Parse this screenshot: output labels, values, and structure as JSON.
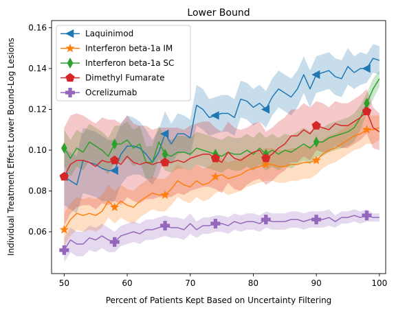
{
  "chart_data": {
    "type": "line",
    "title": "Lower Bound",
    "xlabel": "Percent of Patients Kept Based on Uncertainty Filtering",
    "ylabel": "Individual Treatment Effect Lower Bound-Log Lesions",
    "xlim": [
      48,
      101
    ],
    "ylim": [
      0.0395,
      0.1635
    ],
    "xticks": [
      50,
      60,
      70,
      80,
      90,
      100
    ],
    "xtick_labels": [
      "50",
      "60",
      "70",
      "80",
      "90",
      "100"
    ],
    "yticks": [
      0.06,
      0.08,
      0.1,
      0.12,
      0.14,
      0.16
    ],
    "ytick_labels": [
      "0.06",
      "0.08",
      "0.10",
      "0.12",
      "0.14",
      "0.16"
    ],
    "grid": false,
    "legend_position": "top-left",
    "x": [
      50,
      51,
      52,
      53,
      54,
      55,
      56,
      57,
      58,
      59,
      60,
      61,
      62,
      63,
      64,
      65,
      66,
      67,
      68,
      69,
      70,
      71,
      72,
      73,
      74,
      75,
      76,
      77,
      78,
      79,
      80,
      81,
      82,
      83,
      84,
      85,
      86,
      87,
      88,
      89,
      90,
      91,
      92,
      93,
      94,
      95,
      96,
      97,
      98,
      99,
      100
    ],
    "series": [
      {
        "name": "Laquinimod",
        "color": "#1f77b4",
        "marker": "triangle-left",
        "marker_x": [
          50,
          58,
          66,
          74,
          82,
          90,
          98
        ],
        "values": [
          0.087,
          0.085,
          0.083,
          0.095,
          0.094,
          0.093,
          0.091,
          0.09,
          0.09,
          0.098,
          0.102,
          0.102,
          0.101,
          0.098,
          0.094,
          0.099,
          0.108,
          0.103,
          0.108,
          0.108,
          0.106,
          0.122,
          0.12,
          0.116,
          0.117,
          0.118,
          0.118,
          0.116,
          0.125,
          0.124,
          0.121,
          0.123,
          0.12,
          0.126,
          0.13,
          0.128,
          0.126,
          0.13,
          0.137,
          0.13,
          0.137,
          0.138,
          0.139,
          0.136,
          0.135,
          0.141,
          0.138,
          0.14,
          0.14,
          0.145,
          0.144
        ],
        "band_low": [
          0.073,
          0.071,
          0.069,
          0.079,
          0.078,
          0.077,
          0.075,
          0.075,
          0.075,
          0.083,
          0.087,
          0.088,
          0.088,
          0.086,
          0.083,
          0.088,
          0.097,
          0.093,
          0.098,
          0.099,
          0.097,
          0.112,
          0.11,
          0.107,
          0.108,
          0.109,
          0.109,
          0.107,
          0.116,
          0.115,
          0.112,
          0.114,
          0.111,
          0.117,
          0.121,
          0.119,
          0.117,
          0.121,
          0.128,
          0.121,
          0.128,
          0.129,
          0.13,
          0.127,
          0.126,
          0.132,
          0.13,
          0.132,
          0.133,
          0.138,
          0.137
        ],
        "band_high": [
          0.101,
          0.099,
          0.097,
          0.111,
          0.11,
          0.109,
          0.107,
          0.105,
          0.105,
          0.113,
          0.117,
          0.116,
          0.114,
          0.11,
          0.105,
          0.11,
          0.119,
          0.113,
          0.118,
          0.117,
          0.115,
          0.132,
          0.13,
          0.125,
          0.126,
          0.127,
          0.127,
          0.125,
          0.134,
          0.133,
          0.13,
          0.132,
          0.129,
          0.135,
          0.139,
          0.137,
          0.135,
          0.139,
          0.146,
          0.139,
          0.146,
          0.147,
          0.148,
          0.145,
          0.144,
          0.15,
          0.146,
          0.148,
          0.147,
          0.152,
          0.151
        ]
      },
      {
        "name": "Interferon beta-1a IM",
        "color": "#ff7f0e",
        "marker": "star",
        "marker_x": [
          50,
          58,
          66,
          74,
          82,
          90,
          98
        ],
        "values": [
          0.061,
          0.066,
          0.069,
          0.068,
          0.069,
          0.068,
          0.07,
          0.075,
          0.072,
          0.075,
          0.073,
          0.072,
          0.075,
          0.077,
          0.079,
          0.078,
          0.078,
          0.081,
          0.085,
          0.083,
          0.082,
          0.085,
          0.083,
          0.084,
          0.087,
          0.088,
          0.086,
          0.087,
          0.088,
          0.09,
          0.091,
          0.092,
          0.093,
          0.093,
          0.092,
          0.092,
          0.093,
          0.093,
          0.094,
          0.094,
          0.095,
          0.098,
          0.1,
          0.101,
          0.103,
          0.105,
          0.107,
          0.108,
          0.11,
          0.11,
          0.111
        ],
        "band_low": [
          0.053,
          0.058,
          0.061,
          0.06,
          0.061,
          0.06,
          0.062,
          0.067,
          0.064,
          0.067,
          0.065,
          0.064,
          0.067,
          0.069,
          0.071,
          0.07,
          0.07,
          0.073,
          0.077,
          0.075,
          0.074,
          0.077,
          0.075,
          0.076,
          0.079,
          0.08,
          0.078,
          0.079,
          0.08,
          0.082,
          0.083,
          0.084,
          0.085,
          0.085,
          0.084,
          0.084,
          0.085,
          0.085,
          0.086,
          0.086,
          0.088,
          0.091,
          0.093,
          0.094,
          0.096,
          0.098,
          0.1,
          0.101,
          0.103,
          0.103,
          0.105
        ],
        "band_high": [
          0.069,
          0.074,
          0.077,
          0.076,
          0.077,
          0.076,
          0.078,
          0.083,
          0.08,
          0.083,
          0.081,
          0.08,
          0.083,
          0.085,
          0.087,
          0.086,
          0.086,
          0.089,
          0.093,
          0.091,
          0.09,
          0.093,
          0.091,
          0.092,
          0.095,
          0.096,
          0.094,
          0.095,
          0.096,
          0.098,
          0.099,
          0.1,
          0.101,
          0.101,
          0.1,
          0.1,
          0.101,
          0.101,
          0.102,
          0.102,
          0.102,
          0.105,
          0.107,
          0.108,
          0.11,
          0.112,
          0.114,
          0.115,
          0.117,
          0.117,
          0.117
        ]
      },
      {
        "name": "Interferon beta-1a SC",
        "color": "#2ca02c",
        "marker": "thin-diamond",
        "marker_x": [
          50,
          58,
          66,
          74,
          82,
          90,
          98
        ],
        "values": [
          0.101,
          0.096,
          0.101,
          0.099,
          0.104,
          0.102,
          0.1,
          0.097,
          0.103,
          0.103,
          0.105,
          0.101,
          0.103,
          0.094,
          0.094,
          0.104,
          0.098,
          0.097,
          0.099,
          0.099,
          0.098,
          0.101,
          0.1,
          0.099,
          0.098,
          0.097,
          0.099,
          0.098,
          0.098,
          0.1,
          0.098,
          0.101,
          0.098,
          0.1,
          0.098,
          0.1,
          0.099,
          0.101,
          0.103,
          0.101,
          0.104,
          0.104,
          0.106,
          0.107,
          0.108,
          0.109,
          0.111,
          0.116,
          0.123,
          0.13,
          0.135
        ],
        "band_low": [
          0.092,
          0.087,
          0.092,
          0.09,
          0.095,
          0.093,
          0.091,
          0.088,
          0.094,
          0.094,
          0.096,
          0.092,
          0.094,
          0.086,
          0.086,
          0.096,
          0.09,
          0.089,
          0.091,
          0.091,
          0.09,
          0.093,
          0.092,
          0.091,
          0.09,
          0.089,
          0.091,
          0.09,
          0.09,
          0.092,
          0.09,
          0.093,
          0.09,
          0.092,
          0.09,
          0.092,
          0.091,
          0.093,
          0.095,
          0.093,
          0.097,
          0.097,
          0.099,
          0.1,
          0.101,
          0.102,
          0.104,
          0.11,
          0.118,
          0.125,
          0.131
        ],
        "band_high": [
          0.11,
          0.105,
          0.11,
          0.108,
          0.113,
          0.111,
          0.109,
          0.106,
          0.112,
          0.112,
          0.114,
          0.11,
          0.112,
          0.102,
          0.102,
          0.112,
          0.106,
          0.105,
          0.107,
          0.107,
          0.106,
          0.109,
          0.108,
          0.107,
          0.106,
          0.105,
          0.107,
          0.106,
          0.106,
          0.108,
          0.106,
          0.109,
          0.106,
          0.108,
          0.106,
          0.108,
          0.107,
          0.109,
          0.111,
          0.109,
          0.111,
          0.111,
          0.113,
          0.114,
          0.115,
          0.116,
          0.118,
          0.122,
          0.128,
          0.135,
          0.139
        ]
      },
      {
        "name": "Dimethyl Fumarate",
        "color": "#d62728",
        "marker": "pentagon",
        "marker_x": [
          50,
          58,
          66,
          74,
          82,
          90,
          98
        ],
        "values": [
          0.087,
          0.093,
          0.095,
          0.095,
          0.094,
          0.092,
          0.095,
          0.094,
          0.095,
          0.093,
          0.097,
          0.094,
          0.093,
          0.094,
          0.093,
          0.094,
          0.094,
          0.094,
          0.095,
          0.094,
          0.096,
          0.097,
          0.098,
          0.098,
          0.096,
          0.094,
          0.099,
          0.096,
          0.095,
          0.097,
          0.099,
          0.1,
          0.096,
          0.098,
          0.101,
          0.103,
          0.107,
          0.107,
          0.11,
          0.108,
          0.112,
          0.111,
          0.11,
          0.113,
          0.112,
          0.112,
          0.114,
          0.116,
          0.119,
          0.111,
          0.109
        ],
        "band_low": [
          0.063,
          0.069,
          0.072,
          0.073,
          0.073,
          0.071,
          0.074,
          0.073,
          0.075,
          0.073,
          0.077,
          0.075,
          0.074,
          0.076,
          0.076,
          0.077,
          0.077,
          0.077,
          0.079,
          0.078,
          0.08,
          0.081,
          0.082,
          0.082,
          0.081,
          0.079,
          0.084,
          0.081,
          0.08,
          0.083,
          0.085,
          0.086,
          0.083,
          0.085,
          0.088,
          0.09,
          0.094,
          0.094,
          0.097,
          0.095,
          0.1,
          0.099,
          0.099,
          0.102,
          0.101,
          0.101,
          0.103,
          0.105,
          0.108,
          0.101,
          0.1
        ],
        "band_high": [
          0.111,
          0.117,
          0.118,
          0.117,
          0.115,
          0.113,
          0.116,
          0.115,
          0.115,
          0.113,
          0.117,
          0.113,
          0.112,
          0.112,
          0.11,
          0.111,
          0.111,
          0.111,
          0.111,
          0.11,
          0.112,
          0.113,
          0.114,
          0.114,
          0.111,
          0.109,
          0.114,
          0.111,
          0.11,
          0.111,
          0.113,
          0.114,
          0.109,
          0.111,
          0.114,
          0.116,
          0.12,
          0.12,
          0.123,
          0.121,
          0.124,
          0.123,
          0.121,
          0.124,
          0.123,
          0.123,
          0.125,
          0.127,
          0.13,
          0.121,
          0.118
        ]
      },
      {
        "name": "Ocrelizumab",
        "color": "#9467bd",
        "marker": "plus-filled",
        "marker_x": [
          50,
          58,
          66,
          74,
          82,
          90,
          98
        ],
        "values": [
          0.051,
          0.056,
          0.054,
          0.054,
          0.057,
          0.056,
          0.058,
          0.056,
          0.055,
          0.058,
          0.059,
          0.06,
          0.059,
          0.061,
          0.061,
          0.062,
          0.063,
          0.062,
          0.062,
          0.061,
          0.064,
          0.061,
          0.063,
          0.063,
          0.064,
          0.064,
          0.063,
          0.065,
          0.064,
          0.065,
          0.065,
          0.064,
          0.066,
          0.065,
          0.065,
          0.065,
          0.066,
          0.066,
          0.065,
          0.066,
          0.066,
          0.066,
          0.067,
          0.065,
          0.067,
          0.067,
          0.068,
          0.067,
          0.068,
          0.067,
          0.067
        ],
        "band_low": [
          0.045,
          0.05,
          0.048,
          0.048,
          0.051,
          0.05,
          0.052,
          0.05,
          0.05,
          0.053,
          0.054,
          0.055,
          0.054,
          0.056,
          0.056,
          0.057,
          0.058,
          0.057,
          0.057,
          0.056,
          0.059,
          0.057,
          0.059,
          0.059,
          0.06,
          0.06,
          0.059,
          0.061,
          0.06,
          0.061,
          0.061,
          0.06,
          0.062,
          0.061,
          0.061,
          0.061,
          0.062,
          0.062,
          0.061,
          0.062,
          0.062,
          0.062,
          0.063,
          0.062,
          0.064,
          0.064,
          0.065,
          0.064,
          0.065,
          0.065,
          0.065
        ],
        "band_high": [
          0.057,
          0.062,
          0.06,
          0.06,
          0.063,
          0.062,
          0.064,
          0.062,
          0.06,
          0.063,
          0.064,
          0.065,
          0.064,
          0.066,
          0.066,
          0.067,
          0.068,
          0.067,
          0.067,
          0.066,
          0.069,
          0.065,
          0.067,
          0.067,
          0.068,
          0.068,
          0.067,
          0.069,
          0.068,
          0.069,
          0.069,
          0.068,
          0.07,
          0.069,
          0.069,
          0.069,
          0.07,
          0.07,
          0.069,
          0.07,
          0.07,
          0.07,
          0.071,
          0.068,
          0.07,
          0.07,
          0.071,
          0.07,
          0.071,
          0.069,
          0.069
        ]
      }
    ]
  }
}
